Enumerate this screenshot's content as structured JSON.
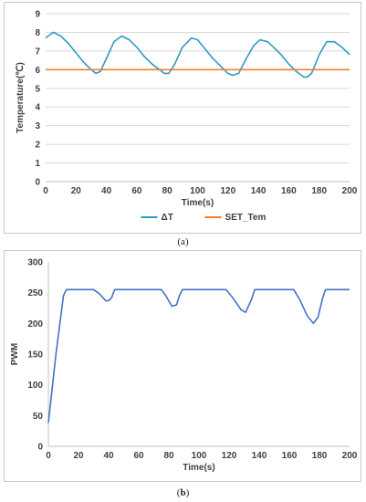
{
  "chart_data": [
    {
      "type": "line",
      "panel": "a",
      "xlabel": "Time(s)",
      "ylabel": "Temperature(℃)",
      "xlim": [
        0,
        200
      ],
      "ylim": [
        0,
        9
      ],
      "xticks": [
        0,
        20,
        40,
        60,
        80,
        100,
        120,
        140,
        160,
        180,
        200
      ],
      "yticks": [
        0,
        1,
        2,
        3,
        4,
        5,
        6,
        7,
        8,
        9
      ],
      "grid": "horizontal",
      "legend": "bottom",
      "series": [
        {
          "name": "ΔT",
          "color": "#2e9ac4",
          "x": [
            0,
            5,
            10,
            15,
            20,
            25,
            30,
            33,
            36,
            40,
            45,
            50,
            55,
            60,
            65,
            70,
            75,
            78,
            81,
            85,
            90,
            96,
            100,
            105,
            110,
            115,
            120,
            123,
            127,
            132,
            137,
            141,
            146,
            150,
            155,
            160,
            165,
            170,
            172,
            175,
            180,
            185,
            190,
            195,
            200
          ],
          "y": [
            7.7,
            8.0,
            7.8,
            7.4,
            6.9,
            6.4,
            6.0,
            5.8,
            5.9,
            6.6,
            7.5,
            7.8,
            7.6,
            7.2,
            6.7,
            6.3,
            6.0,
            5.8,
            5.8,
            6.3,
            7.2,
            7.7,
            7.6,
            7.1,
            6.6,
            6.2,
            5.8,
            5.7,
            5.8,
            6.6,
            7.3,
            7.6,
            7.5,
            7.2,
            6.8,
            6.3,
            5.9,
            5.6,
            5.6,
            5.8,
            6.8,
            7.5,
            7.5,
            7.2,
            6.8
          ]
        },
        {
          "name": "SET_Tem",
          "color": "#f07f2a",
          "x": [
            0,
            200
          ],
          "y": [
            6.0,
            6.0
          ]
        }
      ]
    },
    {
      "type": "line",
      "panel": "b",
      "xlabel": "Time(s)",
      "ylabel": "PWM",
      "xlim": [
        0,
        200
      ],
      "ylim": [
        0,
        300
      ],
      "xticks": [
        0,
        20,
        40,
        60,
        80,
        100,
        120,
        140,
        160,
        180,
        200
      ],
      "yticks": [
        0,
        50,
        100,
        150,
        200,
        250,
        300
      ],
      "grid": "none",
      "series": [
        {
          "name": "",
          "color": "#4472c4",
          "x": [
            0,
            5,
            10,
            12,
            20,
            30,
            34,
            38,
            40,
            42,
            44,
            60,
            75,
            78,
            82,
            85,
            87,
            89,
            110,
            118,
            123,
            128,
            131,
            135,
            137,
            150,
            163,
            167,
            172,
            176,
            179,
            182,
            184,
            200
          ],
          "y": [
            38,
            150,
            245,
            255,
            255,
            255,
            248,
            237,
            237,
            242,
            255,
            255,
            255,
            245,
            228,
            230,
            245,
            255,
            255,
            255,
            240,
            222,
            218,
            240,
            255,
            255,
            255,
            238,
            212,
            200,
            210,
            240,
            255,
            255
          ]
        }
      ]
    }
  ],
  "captions": {
    "a_open": "(",
    "a_letter": "a",
    "a_close": ")",
    "b_open": "(",
    "b_letter": "b",
    "b_close": ")"
  }
}
